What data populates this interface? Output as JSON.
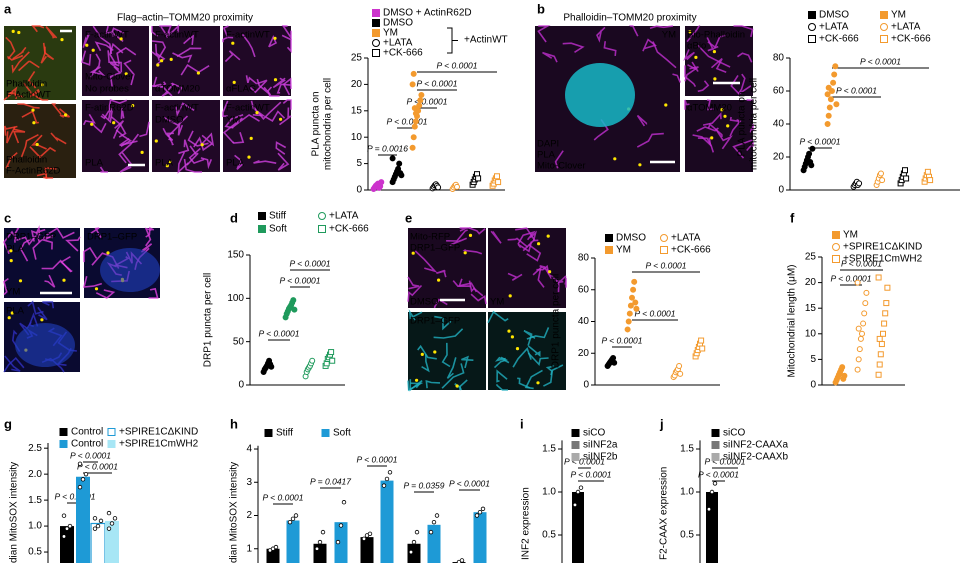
{
  "letters": [
    "a",
    "b",
    "c",
    "d",
    "e",
    "f",
    "g",
    "h",
    "i",
    "j"
  ],
  "panel_titles": [
    "Flag–actin–TOMM20 proximity",
    "Phalloidin–TOMM20 proximity"
  ],
  "image_labels": [
    {
      "text": "Phalloidin",
      "color": "#ff2a2a"
    },
    {
      "text": "F-ActinWT",
      "color": "#3dff3d"
    },
    {
      "text": "Phalloidin",
      "color": "#ff2a2a"
    },
    {
      "text": "F-ActinR62D",
      "color": "#3dff3d"
    },
    {
      "text": "F-actinWT",
      "color": "#ffffff"
    },
    {
      "text": "Mito-Clover",
      "color": "#ff4dff"
    },
    {
      "text": "No probes",
      "color": "#ffe600"
    },
    {
      "text": "F-actinWT",
      "color": "#ffffff"
    },
    {
      "text": "αTOMM20",
      "color": "#ffa040"
    },
    {
      "text": "F-actinWT",
      "color": "#ffffff"
    },
    {
      "text": "αFLAG",
      "color": "#ffa040"
    },
    {
      "text": "F-atinR62D",
      "color": "#ffffff"
    },
    {
      "text": "PLA",
      "color": "#ffe600"
    },
    {
      "text": "F-actinWT",
      "color": "#ffffff"
    },
    {
      "text": "DMSO",
      "color": "#ffffff"
    },
    {
      "text": "PLA",
      "color": "#ffe600"
    },
    {
      "text": "F-actinWT",
      "color": "#ffffff"
    },
    {
      "text": "YM",
      "color": "#ffffff"
    },
    {
      "text": "PLA",
      "color": "#ffe600"
    },
    {
      "text": "YM",
      "color": "#ffffff"
    },
    {
      "text": "DAPI",
      "color": "#00e5ff"
    },
    {
      "text": "PLA",
      "color": "#ffe600"
    },
    {
      "text": "Mito-Clover",
      "color": "#ff4dff"
    },
    {
      "text": "Bio-Phalloidin",
      "color": "#ffe600"
    },
    {
      "text": "αBio",
      "color": "#ffa040"
    },
    {
      "text": "αTOMM20",
      "color": "#ffa040"
    },
    {
      "text": "DRP1–GFP",
      "color": "#ff4dff"
    },
    {
      "text": "PLA",
      "color": "#ffe600"
    },
    {
      "text": "YM",
      "color": "#ffffff"
    },
    {
      "text": "DRP1–GFP",
      "color": "#ff4dff"
    },
    {
      "text": "PLA",
      "color": "#ffe600"
    },
    {
      "text": "Mito-RFP",
      "color": "#ff4dff"
    },
    {
      "text": "DRP1–GFP",
      "color": "#00e5ff"
    },
    {
      "text": "DMSO",
      "color": "#ffffff"
    },
    {
      "text": "YM",
      "color": "#ffffff"
    },
    {
      "text": "DRP1–GFP",
      "color": "#00e5ff"
    }
  ],
  "chart_data": [
    {
      "type": "strip",
      "ylabel": [
        "PLA puncta on",
        "mitochondria per cell"
      ],
      "ylim": [
        0,
        25
      ],
      "yticks": [
        0,
        5,
        10,
        15,
        20,
        25
      ],
      "groups": [
        {
          "color": "#cc33cc",
          "marker": "circle",
          "filled": true,
          "values": [
            0.2,
            0.5,
            0.8,
            1.0,
            1.2,
            0.4,
            0.7,
            1.5
          ]
        },
        {
          "color": "#000000",
          "marker": "circle",
          "filled": true,
          "values": [
            1.5,
            2.0,
            2.5,
            3.0,
            3.5,
            4.0,
            5.0,
            3.2,
            2.8,
            6.0
          ]
        },
        {
          "color": "#f39a2e",
          "marker": "circle",
          "filled": true,
          "values": [
            8,
            10,
            12,
            13,
            14,
            15,
            16,
            17,
            18,
            20,
            22,
            15.5,
            14.5
          ]
        },
        {
          "color": "#000000",
          "marker": "circle",
          "filled": false,
          "values": [
            0.3,
            0.6,
            0.9,
            1.1,
            0.8,
            0.5
          ]
        },
        {
          "color": "#f39a2e",
          "marker": "circle",
          "filled": false,
          "values": [
            0.2,
            0.5,
            0.8,
            1.0,
            0.6
          ]
        },
        {
          "color": "#000000",
          "marker": "square",
          "filled": false,
          "values": [
            1.0,
            1.5,
            2.0,
            2.5,
            3.0,
            2.2
          ]
        },
        {
          "color": "#f39a2e",
          "marker": "square",
          "filled": false,
          "values": [
            0.8,
            1.2,
            1.8,
            2.2,
            2.6,
            1.5
          ]
        }
      ],
      "legend": [
        {
          "label": "DMSO + ActinR62D",
          "color": "#cc33cc",
          "marker": "square",
          "filled": true
        },
        {
          "label": "DMSO",
          "color": "#000000",
          "marker": "square",
          "filled": true
        },
        {
          "label": "YM",
          "color": "#f39a2e",
          "marker": "square",
          "filled": true
        },
        {
          "label": "+LATA",
          "color": "#000000",
          "marker": "circle",
          "filled": false
        },
        {
          "label": "+CK-666",
          "color": "#000000",
          "marker": "square",
          "filled": false
        }
      ],
      "legend_note": "+ActinWT",
      "annotations": [
        "P = 0.0016",
        "P < 0.0001",
        "P < 0.0001",
        "P < 0.0001",
        "P < 0.0001"
      ]
    },
    {
      "type": "strip",
      "ylabel": [
        "PLA puncta on",
        "mitochondria per cell"
      ],
      "ylim": [
        0,
        80
      ],
      "yticks": [
        0,
        20,
        40,
        60,
        80
      ],
      "groups": [
        {
          "color": "#000000",
          "marker": "circle",
          "filled": true,
          "values": [
            12,
            14,
            16,
            18,
            20,
            22,
            17,
            15,
            25
          ]
        },
        {
          "color": "#f39a2e",
          "marker": "circle",
          "filled": true,
          "values": [
            40,
            45,
            50,
            55,
            60,
            65,
            70,
            75,
            52,
            58,
            62
          ]
        },
        {
          "color": "#000000",
          "marker": "circle",
          "filled": false,
          "values": [
            2,
            3,
            4,
            5,
            3,
            4
          ]
        },
        {
          "color": "#f39a2e",
          "marker": "circle",
          "filled": false,
          "values": [
            3,
            5,
            7,
            9,
            10,
            6
          ]
        },
        {
          "color": "#000000",
          "marker": "square",
          "filled": false,
          "values": [
            4,
            6,
            8,
            10,
            12,
            7
          ]
        },
        {
          "color": "#f39a2e",
          "marker": "square",
          "filled": false,
          "values": [
            5,
            7,
            9,
            11,
            8,
            6
          ]
        }
      ],
      "legend": [
        {
          "label": "DMSO",
          "color": "#000000",
          "marker": "square",
          "filled": true
        },
        {
          "label": "YM",
          "color": "#f39a2e",
          "marker": "square",
          "filled": true
        },
        {
          "label": "+LATA",
          "color": "#000000",
          "marker": "circle",
          "filled": false
        },
        {
          "label": "+LATA",
          "color": "#f39a2e",
          "marker": "circle",
          "filled": false
        },
        {
          "label": "+CK-666",
          "color": "#000000",
          "marker": "square",
          "filled": false
        },
        {
          "label": "+CK-666",
          "color": "#f39a2e",
          "marker": "square",
          "filled": false
        }
      ],
      "annotations": [
        "P < 0.0001",
        "P < 0.0001",
        "P < 0.0001"
      ]
    },
    {
      "type": "strip",
      "ylabel": [
        "DRP1 puncta per cell"
      ],
      "ylim": [
        0,
        150
      ],
      "yticks": [
        0,
        50,
        100,
        150
      ],
      "groups": [
        {
          "color": "#000000",
          "marker": "circle",
          "filled": true,
          "values": [
            15,
            18,
            20,
            22,
            25,
            28,
            24,
            21
          ]
        },
        {
          "color": "#1f9a5c",
          "marker": "circle",
          "filled": true,
          "values": [
            78,
            82,
            85,
            88,
            90,
            92,
            95,
            98,
            87
          ]
        },
        {
          "color": "#1f9a5c",
          "marker": "circle",
          "filled": false,
          "values": [
            10,
            15,
            18,
            20,
            22,
            25,
            28
          ]
        },
        {
          "color": "#1f9a5c",
          "marker": "square",
          "filled": false,
          "values": [
            22,
            25,
            30,
            32,
            35,
            38,
            28
          ]
        }
      ],
      "legend": [
        {
          "label": "Stiff",
          "color": "#000000",
          "marker": "square",
          "filled": true
        },
        {
          "label": "+LATA",
          "color": "#1f9a5c",
          "marker": "circle",
          "filled": false
        },
        {
          "label": "Soft",
          "color": "#1f9a5c",
          "marker": "square",
          "filled": true
        },
        {
          "label": "+CK-666",
          "color": "#1f9a5c",
          "marker": "square",
          "filled": false
        }
      ],
      "annotations": [
        "P < 0.0001",
        "P < 0.0001",
        "P < 0.0001"
      ]
    },
    {
      "type": "strip",
      "ylabel": [
        "DRP1 puncta per cell"
      ],
      "ylim": [
        0,
        80
      ],
      "yticks": [
        0,
        20,
        40,
        60,
        80
      ],
      "groups": [
        {
          "color": "#000000",
          "marker": "circle",
          "filled": true,
          "values": [
            12,
            13,
            14,
            15,
            16,
            17,
            14
          ]
        },
        {
          "color": "#f39a2e",
          "marker": "circle",
          "filled": true,
          "values": [
            35,
            40,
            45,
            50,
            55,
            60,
            65,
            52,
            48
          ]
        },
        {
          "color": "#f39a2e",
          "marker": "circle",
          "filled": false,
          "values": [
            5,
            6,
            8,
            9,
            10,
            12,
            7
          ]
        },
        {
          "color": "#f39a2e",
          "marker": "square",
          "filled": false,
          "values": [
            18,
            20,
            22,
            24,
            26,
            28,
            23
          ]
        }
      ],
      "legend": [
        {
          "label": "DMSO",
          "color": "#000000",
          "marker": "square",
          "filled": true
        },
        {
          "label": "+LATA",
          "color": "#f39a2e",
          "marker": "circle",
          "filled": false
        },
        {
          "label": "YM",
          "color": "#f39a2e",
          "marker": "square",
          "filled": true
        },
        {
          "label": "+CK-666",
          "color": "#f39a2e",
          "marker": "square",
          "filled": false
        }
      ],
      "annotations": [
        "P < 0.0001",
        "P < 0.0001",
        "P < 0.0001"
      ]
    },
    {
      "type": "strip",
      "ylabel": [
        "Mitochondrial length (μM)"
      ],
      "ylim": [
        0,
        25
      ],
      "yticks": [
        0,
        5,
        10,
        15,
        20,
        25
      ],
      "groups": [
        {
          "color": "#f39a2e",
          "marker": "circle",
          "filled": true,
          "values": [
            0.5,
            1,
            1.5,
            2,
            2.5,
            3,
            3.5,
            1.2,
            1.8
          ]
        },
        {
          "color": "#f39a2e",
          "marker": "circle",
          "filled": false,
          "values": [
            3,
            5,
            7,
            9,
            10,
            12,
            14,
            16,
            18,
            20,
            11
          ]
        },
        {
          "color": "#f39a2e",
          "marker": "square",
          "filled": false,
          "values": [
            2,
            4,
            6,
            8,
            10,
            12,
            14,
            16,
            19,
            21,
            9
          ]
        }
      ],
      "legend": [
        {
          "label": "YM",
          "color": "#f39a2e",
          "marker": "square",
          "filled": true
        },
        {
          "label": "+SPIRE1CΔKIND",
          "color": "#f39a2e",
          "marker": "circle",
          "filled": false
        },
        {
          "label": "+SPIRE1CmWH2",
          "color": "#f39a2e",
          "marker": "square",
          "filled": false
        }
      ],
      "annotations": [
        "P < 0.0001",
        "P < 0.0001"
      ]
    },
    {
      "type": "bar",
      "ylabel": [
        "dian MitoSOX intensity"
      ],
      "ylim": [
        0,
        2.6
      ],
      "yticks": [
        0.5,
        {
          "value": 1,
          "label": "1.0"
        },
        1.5,
        {
          "value": 2,
          "label": "2.0"
        },
        2.5
      ],
      "series": [
        {
          "name": "Control",
          "color": "#000000",
          "values": [
            1.0
          ],
          "points": [
            [
              0.8,
              0.95,
              1.0,
              1.2
            ]
          ]
        },
        {
          "name": "Control",
          "color": "#1e9ad6",
          "values": [
            1.95
          ],
          "points": [
            [
              1.75,
              1.9,
              2.0,
              2.2
            ]
          ]
        },
        {
          "name": "+SPIRE1CΔKIND",
          "color": "#ffffff",
          "edge": "#1e9ad6",
          "values": [
            1.05
          ],
          "points": [
            [
              0.95,
              1.0,
              1.1,
              1.15
            ]
          ]
        },
        {
          "name": "+SPIRE1CmWH2",
          "color": "#a7e6f5",
          "values": [
            1.1
          ],
          "points": [
            [
              0.95,
              1.05,
              1.15,
              1.25
            ]
          ]
        }
      ],
      "annotations": [
        "P < 0.0001",
        "P < 0.0001",
        "P < 0.0001"
      ]
    },
    {
      "type": "bar",
      "ylabel": [
        "dian MitoSOX intensity"
      ],
      "ylim": [
        0,
        4.1
      ],
      "yticks": [
        1,
        2,
        3,
        4
      ],
      "series": [
        {
          "name": "Stiff",
          "color": "#000000",
          "values": [
            1.0,
            1.15,
            1.35,
            1.15,
            0.6
          ],
          "points": [
            [
              0.95,
              1.0,
              1.05
            ],
            [
              1.0,
              1.2,
              1.5
            ],
            [
              1.3,
              1.4,
              1.45
            ],
            [
              0.9,
              1.2,
              1.5
            ],
            [
              0.5,
              0.6,
              0.65
            ]
          ]
        },
        {
          "name": "Soft",
          "color": "#1e9ad6",
          "values": [
            1.85,
            1.8,
            3.05,
            1.72,
            2.1
          ],
          "points": [
            [
              1.8,
              1.9,
              2.0
            ],
            [
              1.2,
              1.7,
              2.4
            ],
            [
              2.9,
              3.1,
              3.3
            ],
            [
              1.5,
              1.8,
              2.0
            ],
            [
              2.0,
              2.1,
              2.2
            ]
          ]
        }
      ],
      "annotations": [
        "P < 0.0001",
        "P = 0.0417",
        "P < 0.0001",
        "P = 0.0359",
        "P < 0.0001"
      ]
    },
    {
      "type": "bar",
      "ylabel": [
        "INF2 expression"
      ],
      "ylim": [
        0,
        1.6
      ],
      "yticks": [
        0.5,
        {
          "value": 1,
          "label": "1.0"
        },
        1.5
      ],
      "series": [
        {
          "name": "siCO",
          "color": "#000000",
          "values": [
            1.0
          ],
          "points": [
            [
              0.85,
              1.0,
              1.05
            ]
          ]
        },
        {
          "name": "siINF2a",
          "color": "#777777",
          "values": [
            0.05
          ],
          "points": [
            [
              0.03,
              0.06
            ]
          ]
        },
        {
          "name": "siINF2b",
          "color": "#aaaaaa",
          "values": [
            0.03
          ],
          "points": [
            [
              0.02,
              0.04
            ]
          ]
        }
      ],
      "annotations": [
        "P < 0.0001",
        "P < 0.0001"
      ]
    },
    {
      "type": "bar",
      "ylabel": [
        "F2-CAAX expression"
      ],
      "ylim": [
        0,
        1.6
      ],
      "yticks": [
        0.5,
        {
          "value": 1,
          "label": "1.0"
        },
        1.5
      ],
      "series": [
        {
          "name": "siCO",
          "color": "#000000",
          "values": [
            1.0
          ],
          "points": [
            [
              0.8,
              1.0,
              1.1
            ]
          ]
        },
        {
          "name": "siINF2-CAAXa",
          "color": "#777777",
          "values": [
            0.04
          ],
          "points": [
            [
              0.02,
              0.05
            ]
          ]
        },
        {
          "name": "siINF2-CAAXb",
          "color": "#aaaaaa",
          "values": [
            0.03
          ],
          "points": [
            [
              0.02,
              0.04
            ]
          ]
        }
      ],
      "annotations": [
        "P < 0.0001",
        "P < 0.0001"
      ]
    }
  ]
}
